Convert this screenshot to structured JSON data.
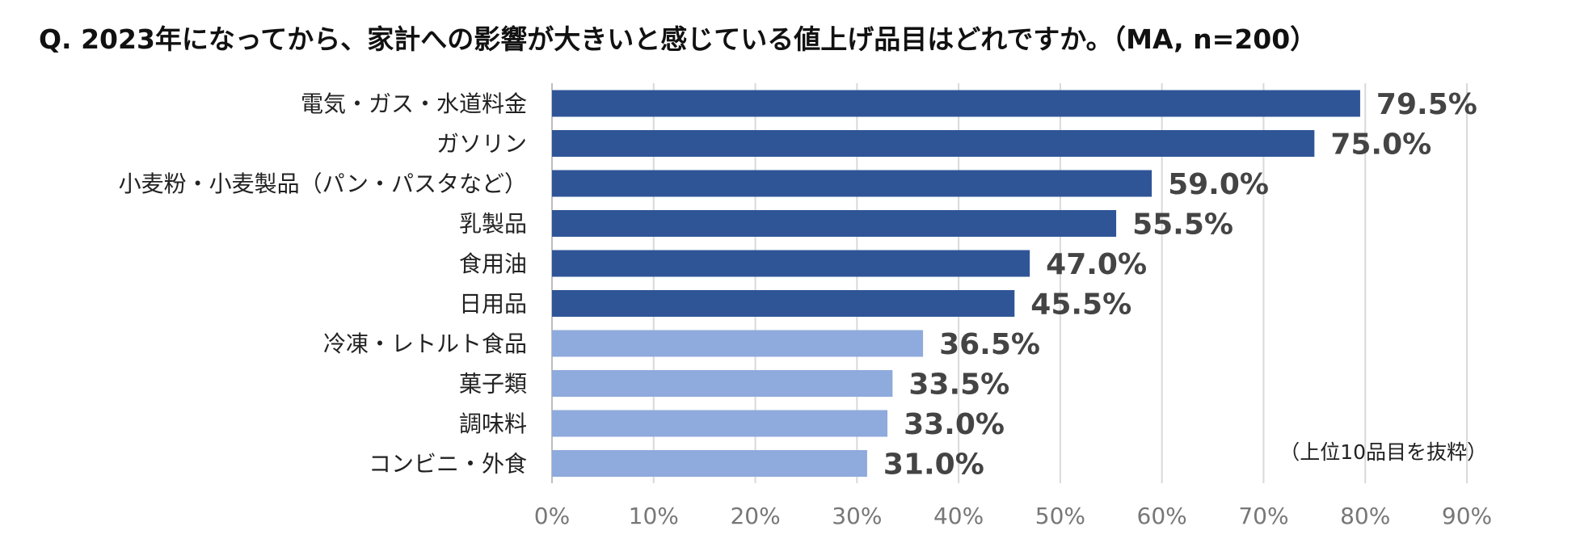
{
  "question": "Q. 2023年になってから、家計への影響が大きいと感じている値上げ品目はどれですか。（MA, n=200）",
  "note": "（上位10品目を抜粋）",
  "colors": {
    "dark": "#2f5597",
    "light": "#8faadc",
    "grid": "#d9d9d9",
    "value_text": "#444444"
  },
  "chart_data": {
    "type": "bar",
    "orientation": "horizontal",
    "title": "Q. 2023年になってから、家計への影響が大きいと感じている値上げ品目はどれですか。（MA, n=200）",
    "categories": [
      "電気・ガス・水道料金",
      "ガソリン",
      "小麦粉・小麦製品（パン・パスタなど）",
      "乳製品",
      "食用油",
      "日用品",
      "冷凍・レトルト食品",
      "菓子類",
      "調味料",
      "コンビニ・外食"
    ],
    "values": [
      79.5,
      75.0,
      59.0,
      55.5,
      47.0,
      45.5,
      36.5,
      33.5,
      33.0,
      31.0
    ],
    "value_labels": [
      "79.5%",
      "75.0%",
      "59.0%",
      "55.5%",
      "47.0%",
      "45.5%",
      "36.5%",
      "33.5%",
      "33.0%",
      "31.0%"
    ],
    "highlight": [
      true,
      true,
      true,
      true,
      true,
      true,
      false,
      false,
      false,
      false
    ],
    "xlim": [
      0,
      90
    ],
    "xticks": [
      0,
      10,
      20,
      30,
      40,
      50,
      60,
      70,
      80,
      90
    ],
    "xtick_labels": [
      "0%",
      "10%",
      "20%",
      "30%",
      "40%",
      "50%",
      "60%",
      "70%",
      "80%",
      "90%"
    ],
    "grid": true,
    "xlabel": "",
    "ylabel": ""
  }
}
